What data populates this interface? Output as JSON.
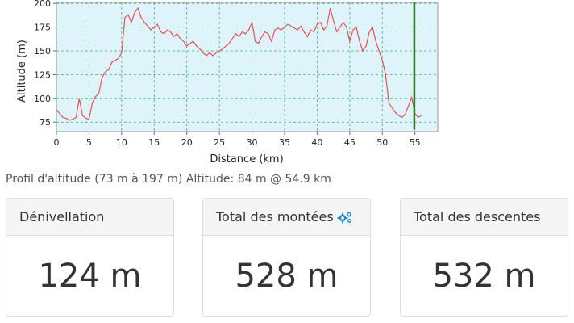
{
  "chart_data": {
    "type": "line",
    "xlabel": "Distance (km)",
    "ylabel": "Altitude (m)",
    "xlim": [
      0,
      58.5
    ],
    "ylim": [
      65,
      201
    ],
    "xticks": [
      "0",
      "5",
      "10",
      "15",
      "20",
      "25",
      "30",
      "35",
      "40",
      "45",
      "50",
      "55"
    ],
    "yticks": [
      "75",
      "100",
      "125",
      "150",
      "175",
      "200"
    ],
    "grid": true,
    "marker_x": 54.9,
    "series": [
      {
        "line_color": "#e8514f",
        "x": [
          0,
          0.5,
          1,
          1.5,
          2,
          2.5,
          3,
          3.5,
          4,
          4.5,
          5,
          5.5,
          6,
          6.5,
          7,
          7.5,
          8,
          8.5,
          9,
          9.5,
          10,
          10.5,
          11,
          11.5,
          12,
          12.5,
          13,
          13.5,
          14,
          14.5,
          15,
          15.5,
          16,
          16.5,
          17,
          17.5,
          18,
          18.5,
          19,
          19.5,
          20,
          20.5,
          21,
          21.5,
          22,
          22.5,
          23,
          23.5,
          24,
          24.5,
          25,
          25.5,
          26,
          26.5,
          27,
          27.5,
          28,
          28.5,
          29,
          29.5,
          30,
          30.5,
          31,
          31.5,
          32,
          32.5,
          33,
          33.5,
          34,
          34.5,
          35,
          35.5,
          36,
          36.5,
          37,
          37.5,
          38,
          38.5,
          39,
          39.5,
          40,
          40.5,
          41,
          41.5,
          42,
          42.5,
          43,
          43.5,
          44,
          44.5,
          45,
          45.5,
          46,
          46.5,
          47,
          47.5,
          48,
          48.5,
          49,
          49.5,
          50,
          50.5,
          51,
          51.5,
          52,
          52.5,
          53,
          53.5,
          54,
          54.5,
          55,
          55.5,
          56
        ],
        "y": [
          88,
          84,
          80,
          79,
          77,
          78,
          80,
          100,
          82,
          79,
          78,
          95,
          102,
          105,
          122,
          128,
          130,
          138,
          140,
          142,
          148,
          185,
          188,
          180,
          190,
          195,
          185,
          180,
          176,
          172,
          175,
          178,
          170,
          168,
          172,
          170,
          165,
          168,
          163,
          160,
          155,
          158,
          160,
          155,
          152,
          148,
          145,
          148,
          145,
          148,
          150,
          152,
          155,
          158,
          163,
          168,
          165,
          170,
          168,
          172,
          180,
          160,
          158,
          165,
          170,
          168,
          160,
          172,
          174,
          172,
          175,
          178,
          176,
          174,
          172,
          176,
          170,
          165,
          172,
          170,
          178,
          180,
          172,
          176,
          195,
          182,
          170,
          175,
          180,
          175,
          160,
          172,
          175,
          160,
          150,
          155,
          170,
          175,
          160,
          150,
          140,
          125,
          95,
          90,
          85,
          82,
          80,
          83,
          92,
          101,
          84,
          80,
          82
        ]
      }
    ]
  },
  "caption": "Profil d'altitude (73 m à 197 m) Altitude: 84 m @ 54.9 km",
  "stats": [
    {
      "label": "Dénivellation",
      "value": "124 m"
    },
    {
      "label": "Total des montées",
      "value": "528 m",
      "icon": "gears-icon"
    },
    {
      "label": "Total des descentes",
      "value": "532 m"
    }
  ]
}
